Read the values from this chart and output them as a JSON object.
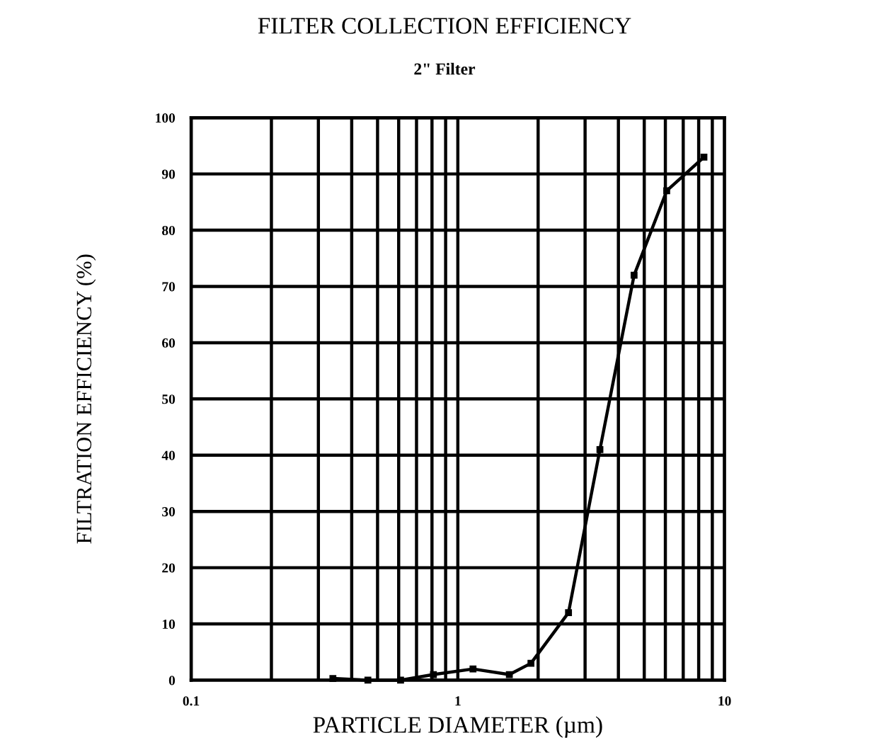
{
  "chart_data": {
    "type": "line",
    "title": "FILTER COLLECTION EFFICIENCY",
    "subtitle": "2\" Filter",
    "xlabel": "PARTICLE DIAMETER (µm)",
    "ylabel": "FILTRATION EFFICIENCY (%)",
    "x": [
      0.34,
      0.46,
      0.61,
      0.81,
      1.14,
      1.56,
      1.88,
      2.6,
      3.41,
      4.58,
      6.07,
      8.37
    ],
    "series": [
      {
        "color": "#000000",
        "values": [
          0.3,
          0,
          0,
          1,
          2,
          1,
          3,
          12,
          41,
          72,
          87,
          93
        ]
      }
    ],
    "log": "x",
    "xlim": [
      0.1,
      10
    ],
    "ylim": [
      0,
      100
    ],
    "xticks": [
      {
        "value": 0.1,
        "label": "0.1"
      },
      {
        "value": 0.2,
        "label": null
      },
      {
        "value": 0.3,
        "label": null
      },
      {
        "value": 0.4,
        "label": null
      },
      {
        "value": 0.5,
        "label": null
      },
      {
        "value": 0.6,
        "label": null
      },
      {
        "value": 0.7,
        "label": null
      },
      {
        "value": 0.8,
        "label": null
      },
      {
        "value": 0.9,
        "label": null
      },
      1,
      {
        "value": 2,
        "label": null
      },
      {
        "value": 3,
        "label": null
      },
      {
        "value": 4,
        "label": null
      },
      {
        "value": 5,
        "label": null
      },
      {
        "value": 6,
        "label": null
      },
      {
        "value": 7,
        "label": null
      },
      {
        "value": 8,
        "label": null
      },
      {
        "value": 9,
        "label": null
      },
      10
    ],
    "yticks": [
      0,
      10,
      20,
      30,
      40,
      50,
      60,
      70,
      80,
      90,
      100
    ],
    "grid": true,
    "marker": "square",
    "line_style": "solid"
  }
}
